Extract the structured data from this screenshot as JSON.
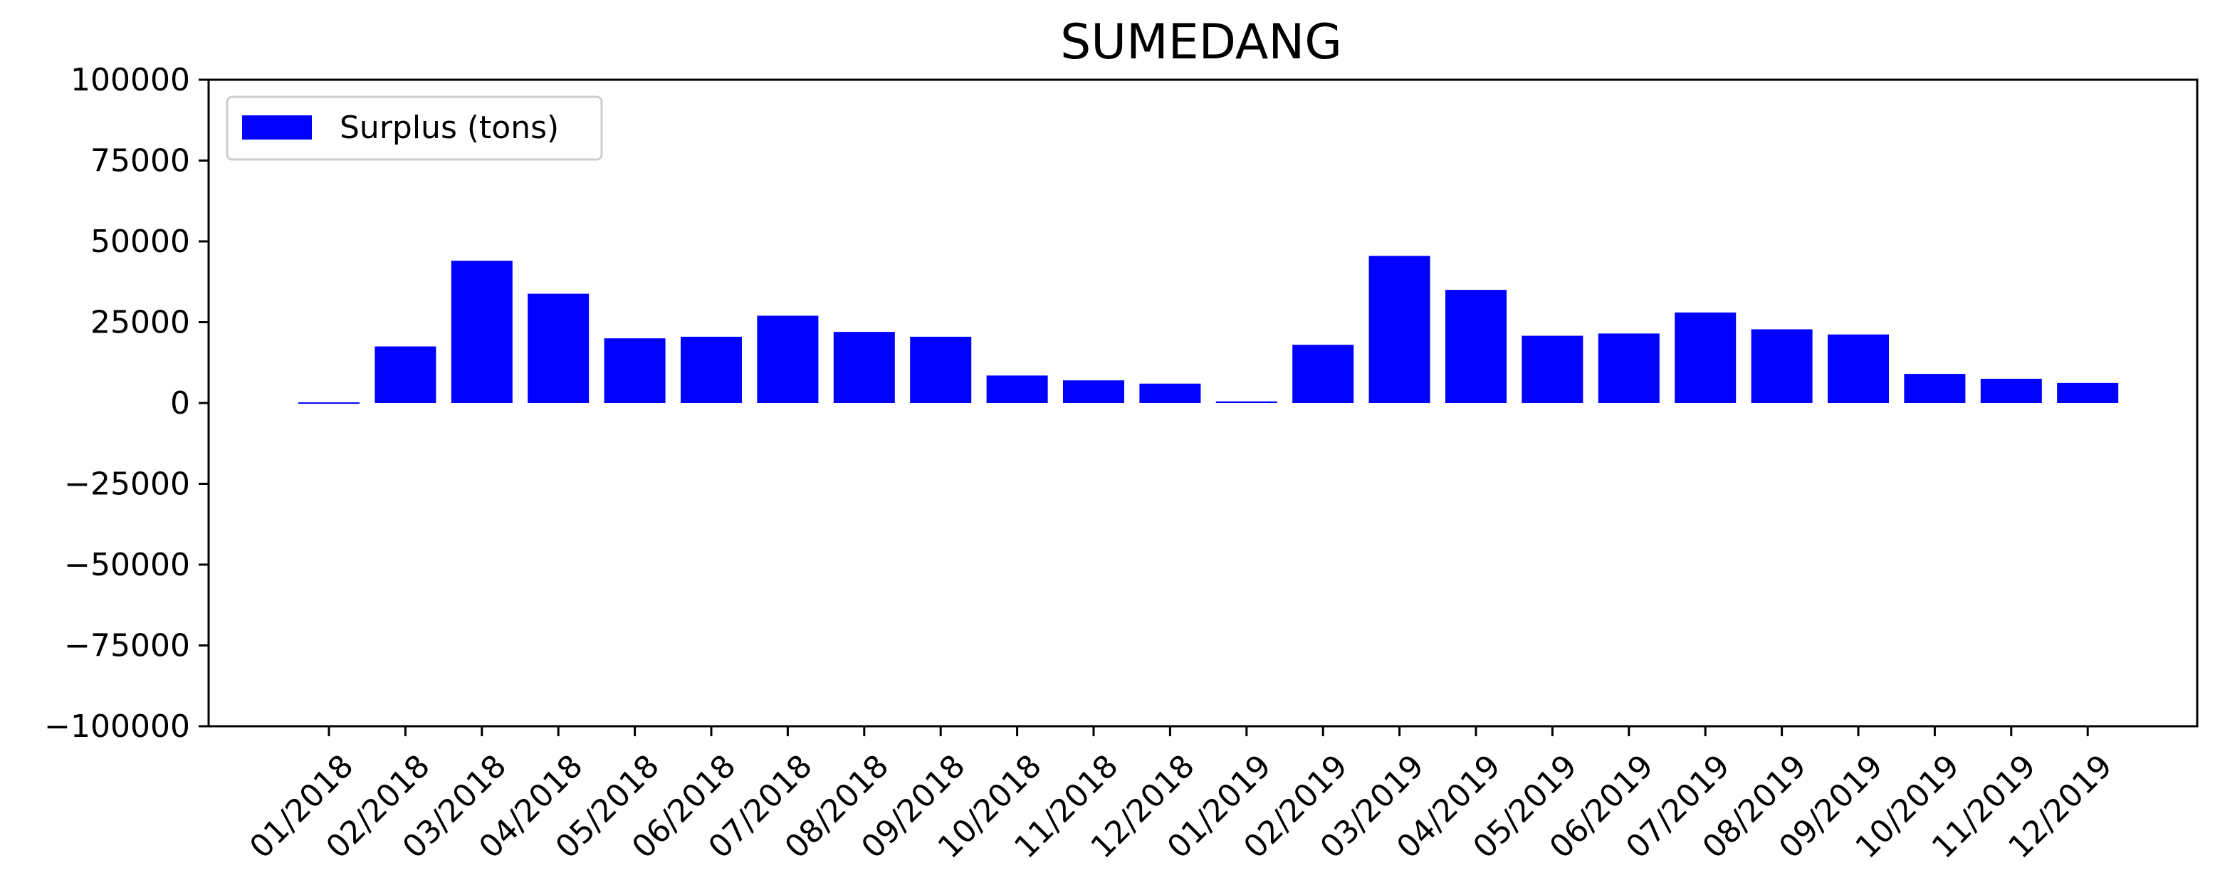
{
  "chart_data": {
    "type": "bar",
    "title": "SUMEDANG",
    "xlabel": "",
    "ylabel": "",
    "categories": [
      "01/2018",
      "02/2018",
      "03/2018",
      "04/2018",
      "05/2018",
      "06/2018",
      "07/2018",
      "08/2018",
      "09/2018",
      "10/2018",
      "11/2018",
      "12/2018",
      "01/2019",
      "02/2019",
      "03/2019",
      "04/2019",
      "05/2019",
      "06/2019",
      "07/2019",
      "08/2019",
      "09/2019",
      "10/2019",
      "11/2019",
      "12/2019"
    ],
    "series": [
      {
        "name": "Surplus (tons)",
        "color": "#0000ff",
        "values": [
          200,
          17500,
          44000,
          33800,
          20000,
          20500,
          27000,
          22000,
          20500,
          8500,
          7000,
          6000,
          500,
          18000,
          45500,
          35000,
          20800,
          21500,
          28000,
          22800,
          21200,
          9000,
          7500,
          6200
        ]
      }
    ],
    "ylim": [
      -100000,
      100000
    ],
    "yticks": [
      100000,
      75000,
      50000,
      25000,
      0,
      -25000,
      -50000,
      -75000,
      -100000
    ],
    "ytick_labels": [
      "100000",
      "75000",
      "50000",
      "25000",
      "0",
      "−25000",
      "−50000",
      "−75000",
      "−100000"
    ],
    "grid": false,
    "legend_position": "top-left"
  }
}
